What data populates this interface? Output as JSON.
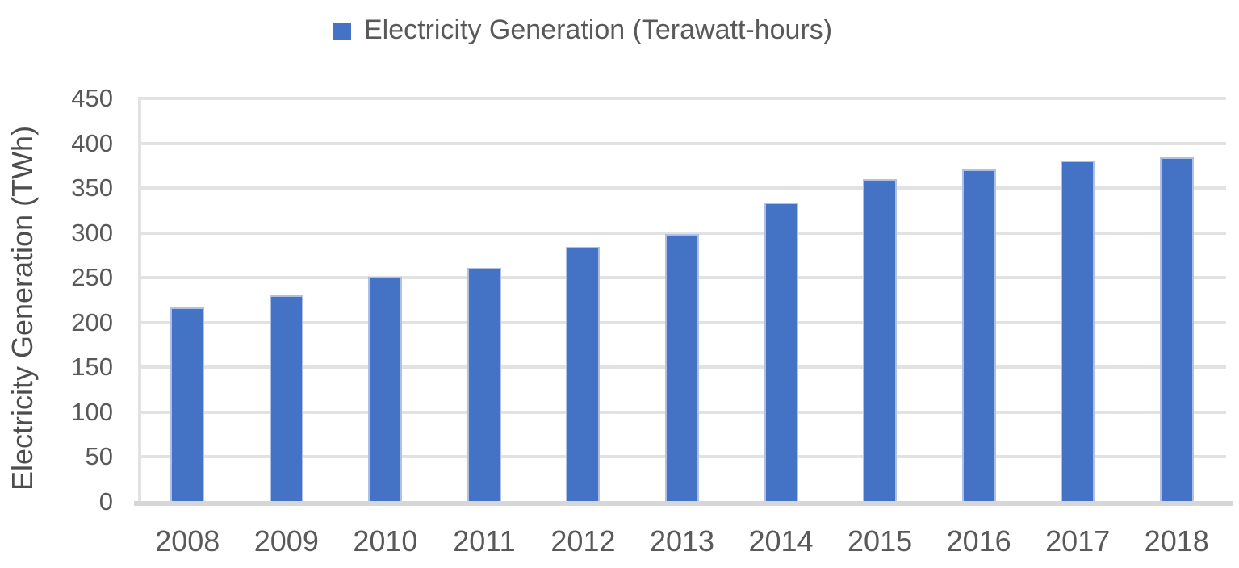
{
  "chart_data": {
    "type": "bar",
    "title": "",
    "legend_label": "Electricity Generation (Terawatt-hours)",
    "legend_position": "top-center",
    "ylabel": "Electricity Generation (TWh)",
    "xlabel": "",
    "categories": [
      "2008",
      "2009",
      "2010",
      "2011",
      "2012",
      "2013",
      "2014",
      "2015",
      "2016",
      "2017",
      "2018"
    ],
    "values": [
      217,
      230,
      251,
      261,
      284,
      299,
      334,
      360,
      371,
      381,
      384
    ],
    "ylim": [
      0,
      450
    ],
    "ytick_step": 50,
    "yticks": [
      0,
      50,
      100,
      150,
      200,
      250,
      300,
      350,
      400,
      450
    ],
    "grid": "horizontal",
    "bar_color": "#4472C4",
    "bar_border_color": "#AEC0E4",
    "gridline_color": "#E2E2E2",
    "axis_line_color": "#D6D6D6",
    "text_color": "#595959"
  }
}
